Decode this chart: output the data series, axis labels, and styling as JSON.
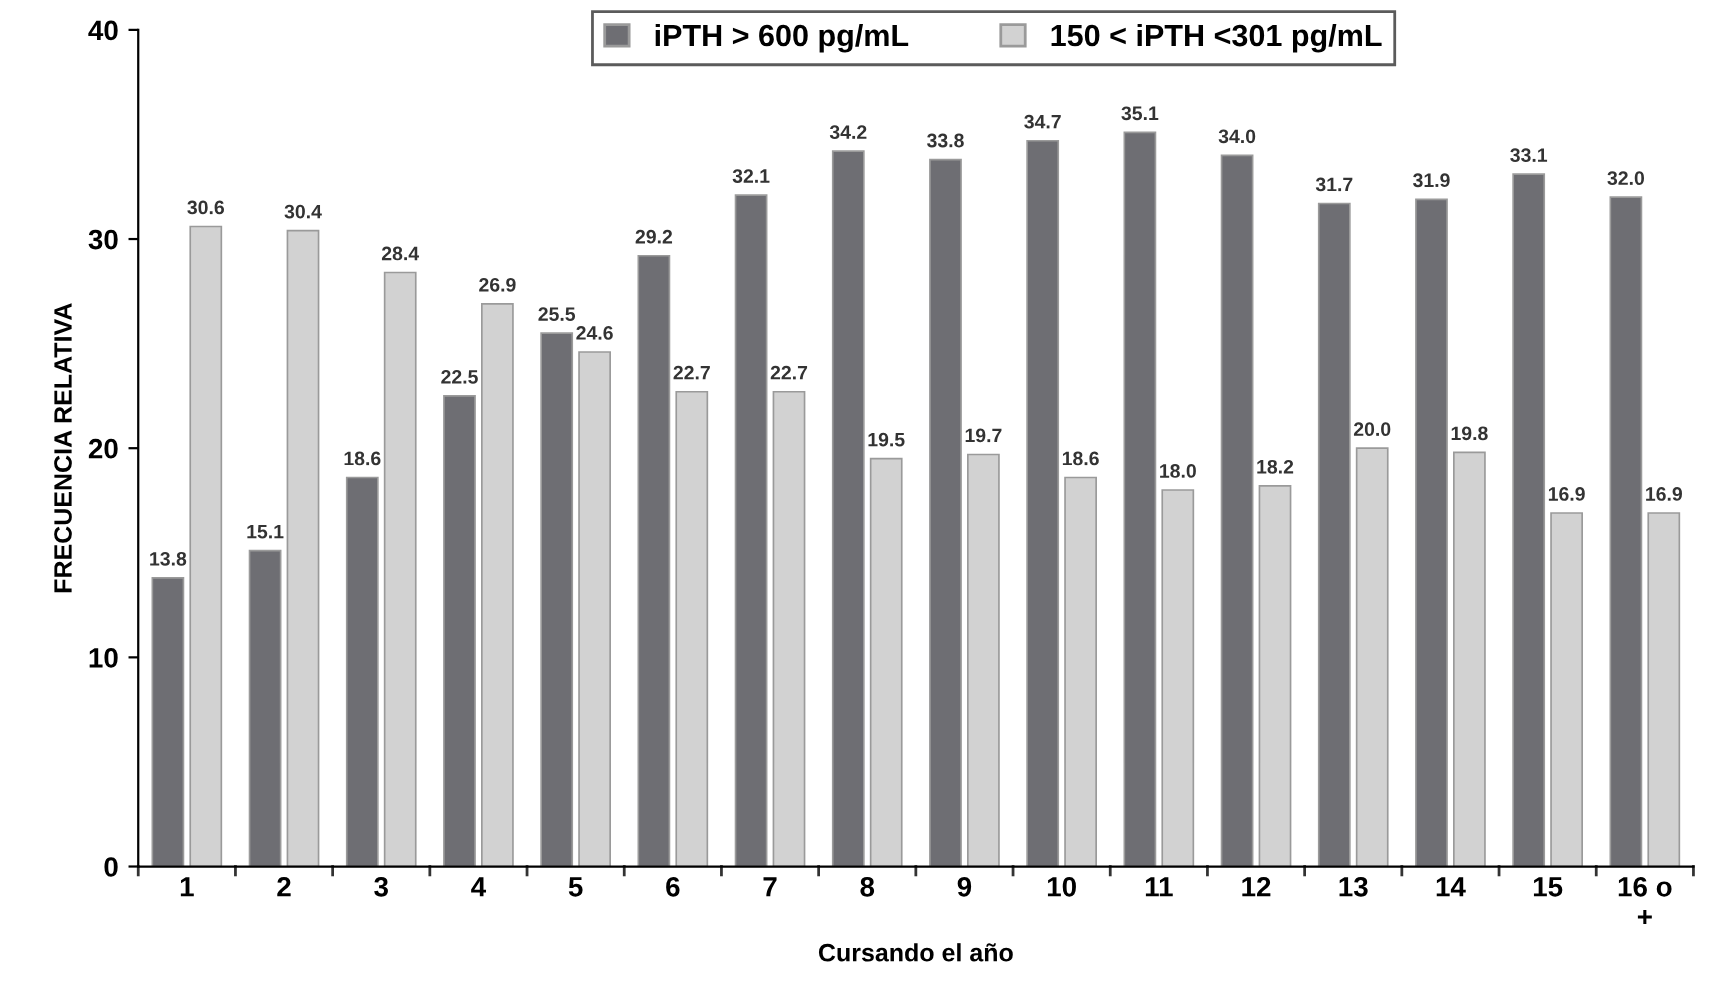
{
  "chart_data": {
    "type": "bar",
    "xlabel": "Cursando el año",
    "ylabel": "FRECUENCIA RELATIVA",
    "categories": [
      "1",
      "2",
      "3",
      "4",
      "5",
      "6",
      "7",
      "8",
      "9",
      "10",
      "11",
      "12",
      "13",
      "14",
      "15",
      "16 o\n+"
    ],
    "series": [
      {
        "name": "iPTH > 600 pg/mL",
        "color": "#6e6e73",
        "values": [
          13.8,
          15.1,
          18.6,
          22.5,
          25.5,
          29.2,
          32.1,
          34.2,
          33.8,
          34.7,
          35.1,
          34.0,
          31.7,
          31.9,
          33.1,
          32.0
        ],
        "value_labels": [
          "13.8",
          "15.1",
          "18.6",
          "22.5",
          "25.5",
          "29.2",
          "32.1",
          "34.2",
          "33.8",
          "34.7",
          "35.1",
          "34.0",
          "31.7",
          "31.9",
          "33.1",
          "32.0"
        ]
      },
      {
        "name": "150 < iPTH <301 pg/mL",
        "color": "#d2d2d2",
        "values": [
          30.6,
          30.4,
          28.4,
          26.9,
          24.6,
          22.7,
          22.7,
          19.5,
          19.7,
          18.6,
          18.0,
          18.2,
          20.0,
          19.8,
          16.9,
          16.9
        ],
        "value_labels": [
          "30.6",
          "30.4",
          "28.4",
          "26.9",
          "24.6",
          "22.7",
          "22.7",
          "19.5",
          "19.7",
          "18.6",
          "18.0",
          "18.2",
          "20.0",
          "19.8",
          "16.9",
          "16.9"
        ]
      }
    ],
    "ylim": [
      0,
      40
    ],
    "yticks": [
      0,
      10,
      20,
      30,
      40
    ],
    "grid": false,
    "legend": "top"
  }
}
